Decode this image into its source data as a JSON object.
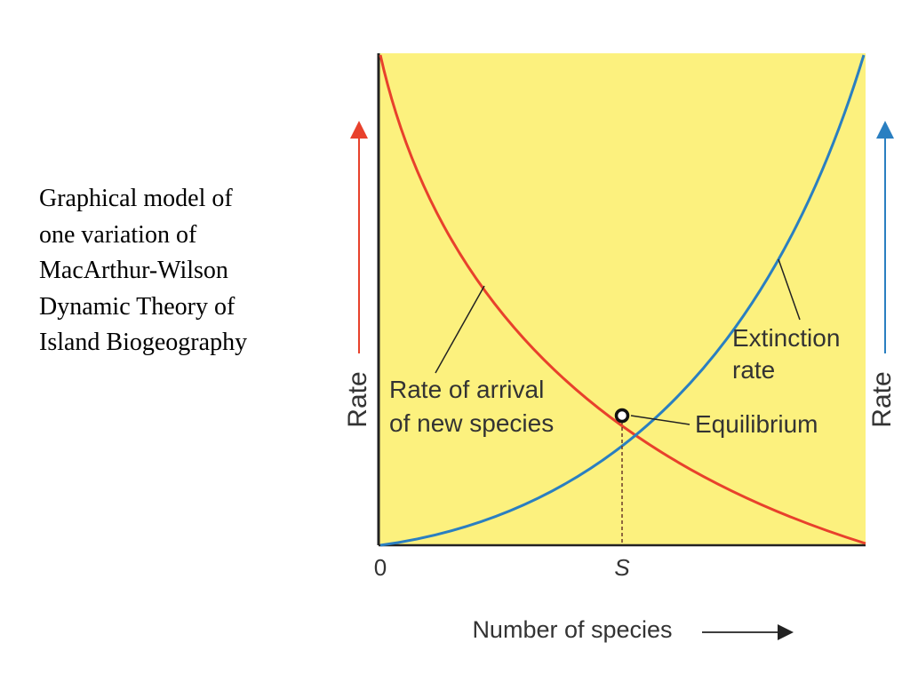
{
  "caption": {
    "lines": [
      "Graphical model of",
      "one variation of",
      "MacArthur-Wilson",
      "Dynamic Theory of",
      "Island Biogeography"
    ]
  },
  "diagram": {
    "y_axis_left_label": "Rate",
    "y_axis_right_label": "Rate",
    "x_axis_label": "Number of species",
    "origin_label": "0",
    "equilibrium_tick_label": "S",
    "arrival_curve_label_line1": "Rate of arrival",
    "arrival_curve_label_line2": "of new species",
    "extinction_curve_label_line1": "Extinction",
    "extinction_curve_label_line2": "rate",
    "equilibrium_label": "Equilibrium"
  },
  "colors": {
    "plot_background": "#fcf17e",
    "arrival_curve": "#e8412c",
    "extinction_curve": "#2a7fc1",
    "axis": "#222222",
    "label_text": "#333333"
  }
}
